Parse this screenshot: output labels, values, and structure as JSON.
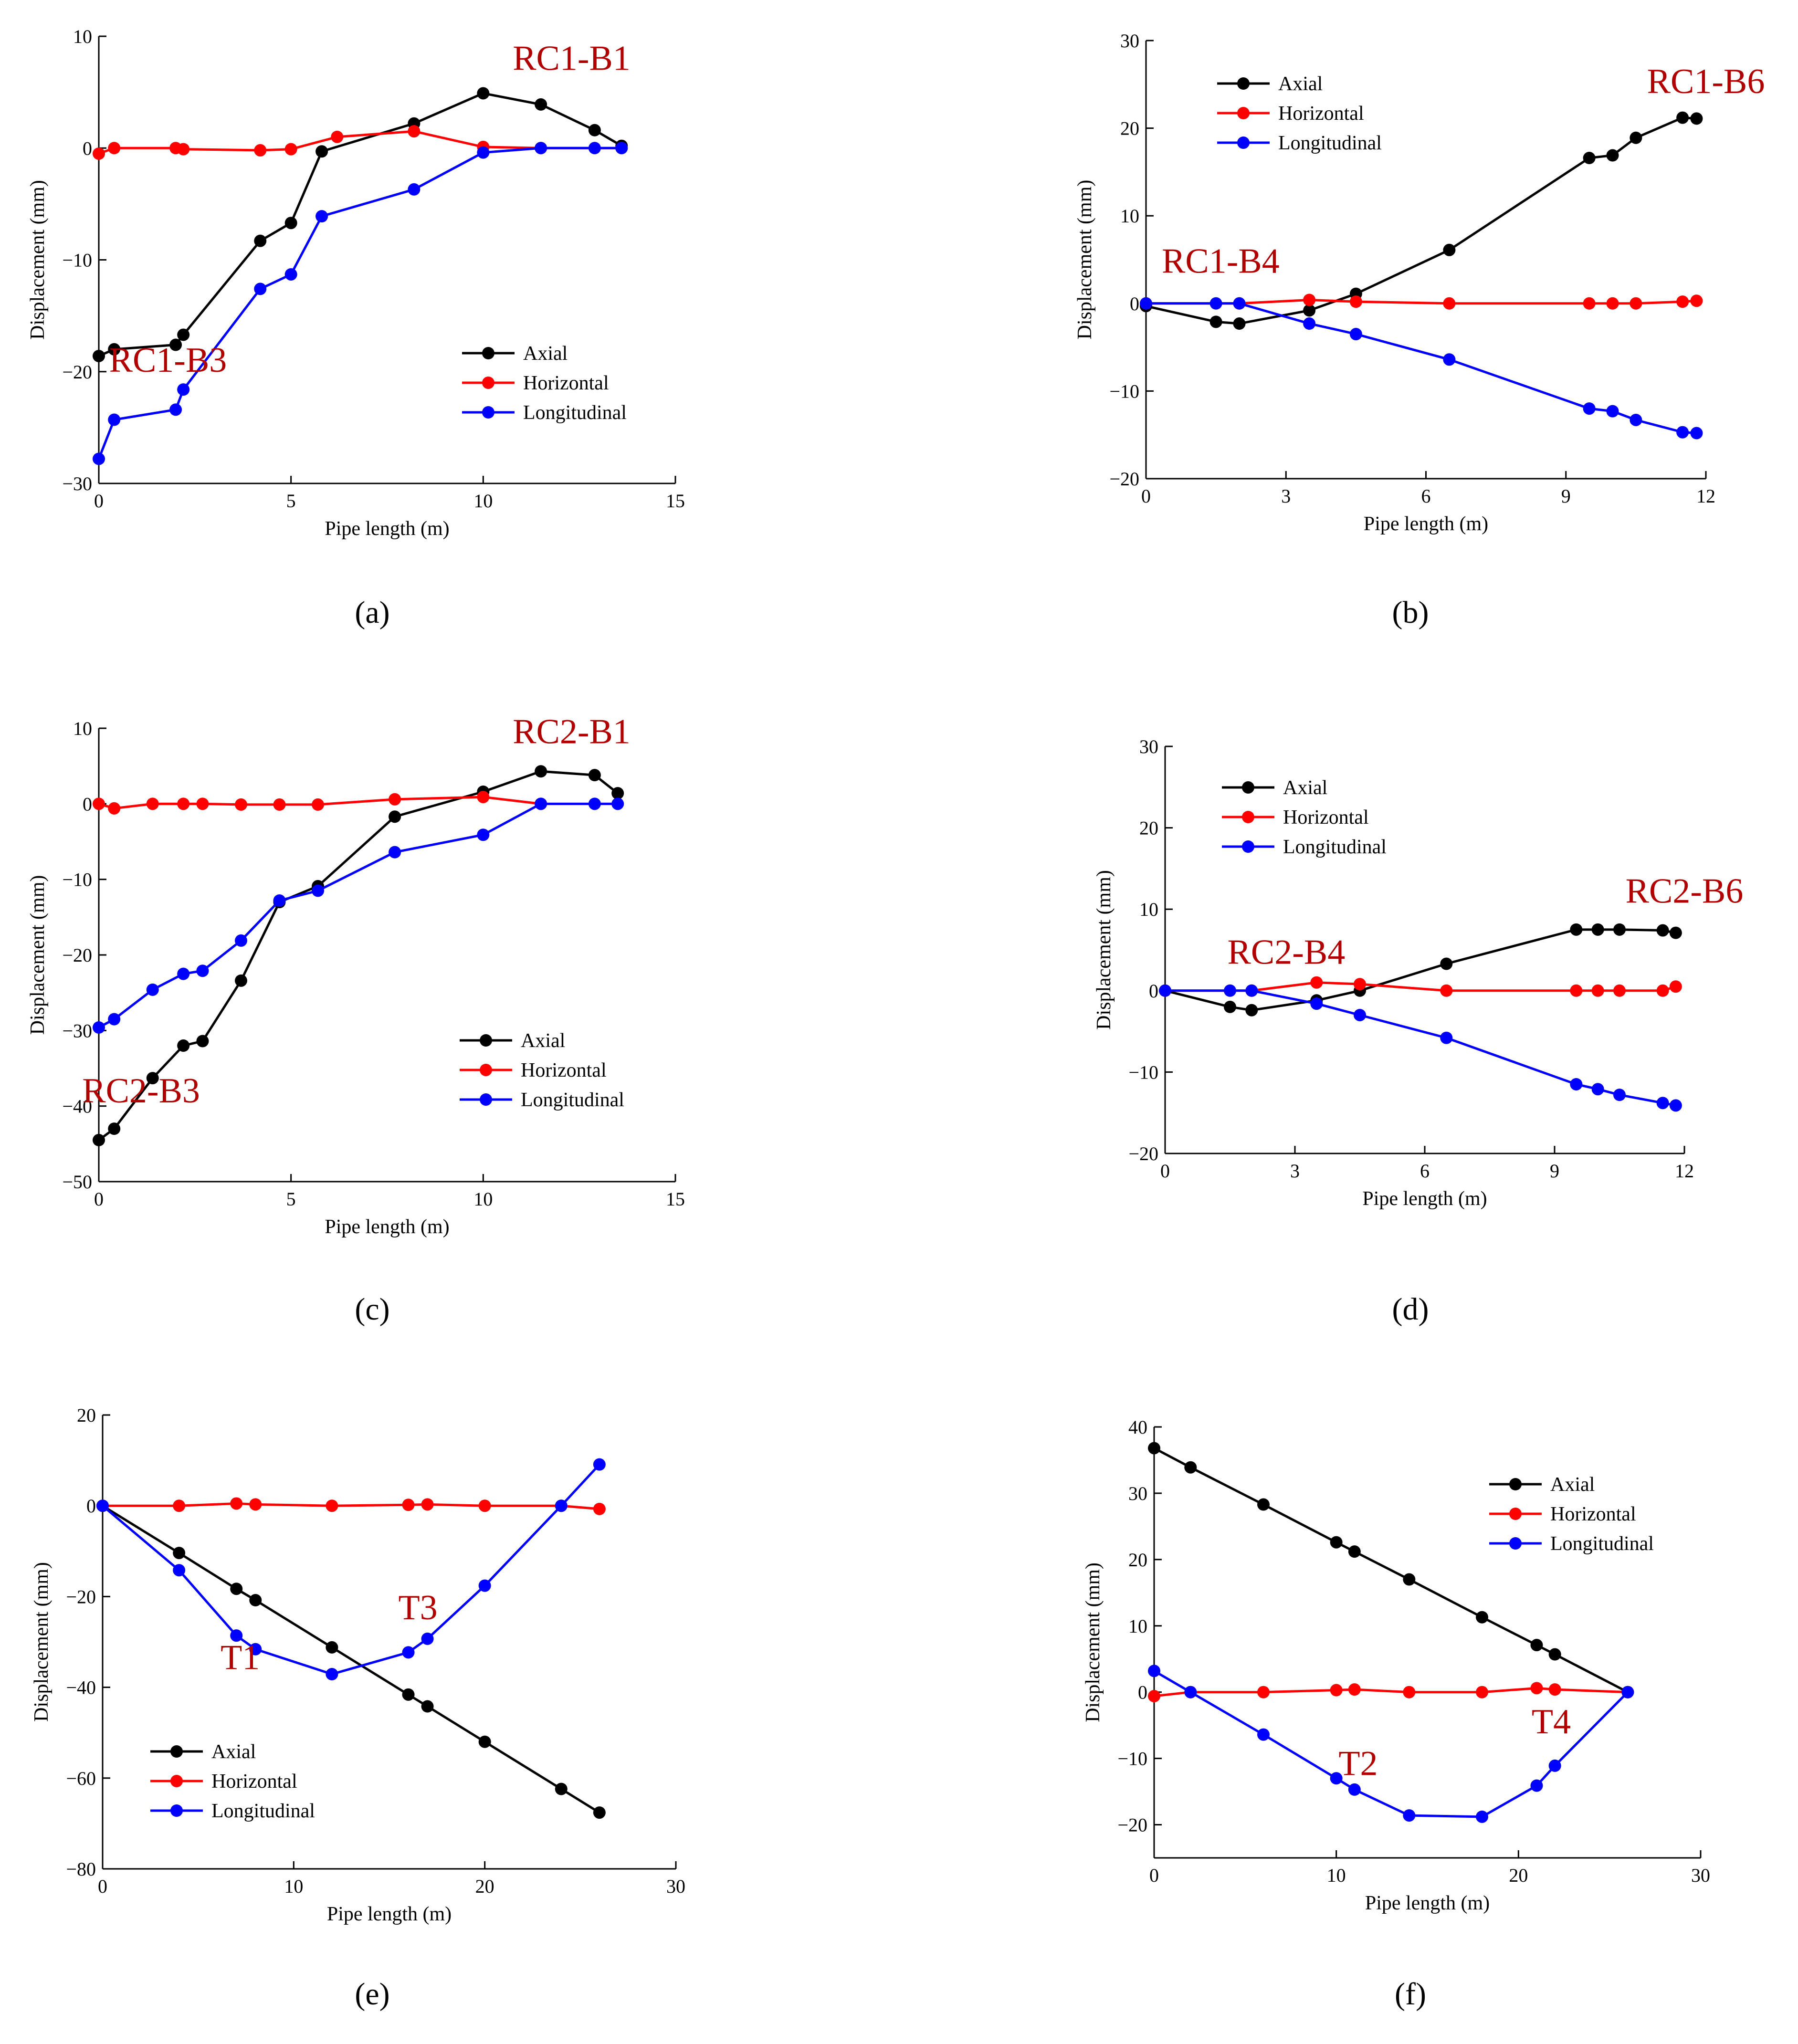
{
  "colors": {
    "axial": "#000000",
    "horizontal": "#ff0000",
    "longitudinal": "#0000ff",
    "annotation": "#b00000"
  },
  "captions": [
    "(a)",
    "(b)",
    "(c)",
    "(d)",
    "(e)",
    "(f)"
  ],
  "chart_data": [
    {
      "type": "line",
      "panel": "a",
      "xlabel": "Pipe length (m)",
      "ylabel": "Displacement (mm)",
      "xlim": [
        0,
        15
      ],
      "ylim": [
        -30,
        10
      ],
      "xticks": [
        0,
        5,
        10,
        15
      ],
      "yticks": [
        -30,
        -20,
        -10,
        0,
        10
      ],
      "xtick_labels": [
        "0",
        "5",
        "10",
        "15"
      ],
      "ytick_labels": [
        "−30",
        "−20",
        "−10",
        "0",
        "10"
      ],
      "legend": "bottom-right",
      "annotations": [
        {
          "text": "RC1-B1",
          "x": 12.3,
          "y": 7.0
        },
        {
          "text": "RC1-B3",
          "x": 1.8,
          "y": -20.0
        }
      ],
      "series": [
        {
          "name": "Axial",
          "key": "axial",
          "x": [
            0,
            0.4,
            2,
            2.2,
            4.2,
            5,
            5.8,
            8.2,
            10,
            11.5,
            12.9,
            13.6
          ],
          "y": [
            -18.6,
            -18,
            -17.6,
            -16.7,
            -8.3,
            -6.7,
            -0.3,
            2.2,
            4.9,
            3.9,
            1.6,
            0.2
          ]
        },
        {
          "name": "Horizontal",
          "key": "horizontal",
          "x": [
            0,
            0.4,
            2,
            2.2,
            4.2,
            5,
            6.2,
            8.2,
            10,
            11.5,
            13.6
          ],
          "y": [
            -0.5,
            0,
            0,
            -0.1,
            -0.2,
            -0.1,
            1,
            1.5,
            0.1,
            0,
            0
          ]
        },
        {
          "name": "Longitudinal",
          "key": "longitudinal",
          "x": [
            0,
            0.4,
            2,
            2.2,
            4.2,
            5,
            5.8,
            8.2,
            10,
            11.5,
            12.9,
            13.6
          ],
          "y": [
            -27.8,
            -24.3,
            -23.4,
            -21.6,
            -12.6,
            -11.3,
            -6.1,
            -3.7,
            -0.4,
            0,
            0,
            0
          ]
        }
      ]
    },
    {
      "type": "line",
      "panel": "b",
      "xlabel": "Pipe length (m)",
      "ylabel": "Displacement (mm)",
      "xlim": [
        0,
        12
      ],
      "ylim": [
        -20,
        30
      ],
      "xticks": [
        0,
        3,
        6,
        9,
        12
      ],
      "yticks": [
        -20,
        -10,
        0,
        10,
        20,
        30
      ],
      "xtick_labels": [
        "0",
        "3",
        "6",
        "9",
        "12"
      ],
      "ytick_labels": [
        "−20",
        "−10",
        "0",
        "10",
        "20",
        "30"
      ],
      "legend": "top-left",
      "annotations": [
        {
          "text": "RC1-B6",
          "x": 12.0,
          "y": 24.0
        },
        {
          "text": "RC1-B4",
          "x": 1.6,
          "y": 3.5
        }
      ],
      "series": [
        {
          "name": "Axial",
          "key": "axial",
          "x": [
            0,
            1.5,
            2,
            3.5,
            4.5,
            6.5,
            9.5,
            10,
            10.5,
            11.5,
            11.8
          ],
          "y": [
            -0.3,
            -2.1,
            -2.3,
            -0.8,
            1.1,
            6.1,
            16.6,
            16.9,
            18.9,
            21.2,
            21.1
          ]
        },
        {
          "name": "Horizontal",
          "key": "horizontal",
          "x": [
            0,
            2,
            3.5,
            4.5,
            6.5,
            9.5,
            10,
            10.5,
            11.5,
            11.8
          ],
          "y": [
            0,
            0,
            0.4,
            0.2,
            0,
            0,
            0,
            0,
            0.2,
            0.3
          ]
        },
        {
          "name": "Longitudinal",
          "key": "longitudinal",
          "x": [
            0,
            1.5,
            2,
            3.5,
            4.5,
            6.5,
            9.5,
            10,
            10.5,
            11.5,
            11.8
          ],
          "y": [
            0,
            0,
            0,
            -2.3,
            -3.5,
            -6.4,
            -12,
            -12.3,
            -13.3,
            -14.7,
            -14.8
          ]
        }
      ]
    },
    {
      "type": "line",
      "panel": "c",
      "xlabel": "Pipe length (m)",
      "ylabel": "Displacement (mm)",
      "xlim": [
        0,
        15
      ],
      "ylim": [
        -50,
        10
      ],
      "xticks": [
        0,
        5,
        10,
        15
      ],
      "yticks": [
        -50,
        -40,
        -30,
        -20,
        -10,
        0,
        10
      ],
      "xtick_labels": [
        "0",
        "5",
        "10",
        "15"
      ],
      "ytick_labels": [
        "−50",
        "−40",
        "−30",
        "−20",
        "−10",
        "0",
        "10"
      ],
      "legend": "bottom-right",
      "annotations": [
        {
          "text": "RC2-B1",
          "x": 12.3,
          "y": 8.0
        },
        {
          "text": "RC2-B3",
          "x": 1.1,
          "y": -39.5
        }
      ],
      "series": [
        {
          "name": "Axial",
          "key": "axial",
          "x": [
            0,
            0.4,
            1.4,
            2.2,
            2.7,
            3.7,
            4.7,
            5.7,
            7.7,
            10,
            11.5,
            12.9,
            13.5
          ],
          "y": [
            -44.5,
            -43,
            -36.3,
            -32,
            -31.4,
            -23.4,
            -13,
            -10.9,
            -1.7,
            1.6,
            4.3,
            3.8,
            1.4
          ]
        },
        {
          "name": "Horizontal",
          "key": "horizontal",
          "x": [
            0,
            0.4,
            1.4,
            2.2,
            2.7,
            3.7,
            4.7,
            5.7,
            7.7,
            10,
            11.5
          ],
          "y": [
            0,
            -0.6,
            0,
            0,
            0,
            -0.1,
            -0.1,
            -0.1,
            0.6,
            0.9,
            0
          ]
        },
        {
          "name": "Longitudinal",
          "key": "longitudinal",
          "x": [
            0,
            0.4,
            1.4,
            2.2,
            2.7,
            3.7,
            4.7,
            5.7,
            7.7,
            10,
            11.5,
            12.9,
            13.5
          ],
          "y": [
            -29.6,
            -28.5,
            -24.6,
            -22.5,
            -22.1,
            -18.1,
            -12.8,
            -11.5,
            -6.4,
            -4.1,
            0,
            0,
            0
          ]
        }
      ]
    },
    {
      "type": "line",
      "panel": "d",
      "xlabel": "Pipe length (m)",
      "ylabel": "Displacement (mm)",
      "xlim": [
        0,
        12
      ],
      "ylim": [
        -20,
        30
      ],
      "xticks": [
        0,
        3,
        6,
        9,
        12
      ],
      "yticks": [
        -20,
        -10,
        0,
        10,
        20,
        30
      ],
      "xtick_labels": [
        "0",
        "3",
        "6",
        "9",
        "12"
      ],
      "ytick_labels": [
        "−20",
        "−10",
        "0",
        "10",
        "20",
        "30"
      ],
      "legend": "top-left",
      "annotations": [
        {
          "text": "RC2-B6",
          "x": 12.0,
          "y": 10.8
        },
        {
          "text": "RC2-B4",
          "x": 2.8,
          "y": 3.3
        }
      ],
      "series": [
        {
          "name": "Axial",
          "key": "axial",
          "x": [
            0,
            1.5,
            2,
            3.5,
            4.5,
            6.5,
            9.5,
            10,
            10.5,
            11.5,
            11.8
          ],
          "y": [
            0,
            -2,
            -2.4,
            -1.2,
            0,
            3.3,
            7.5,
            7.5,
            7.5,
            7.4,
            7.1
          ]
        },
        {
          "name": "Horizontal",
          "key": "horizontal",
          "x": [
            0,
            2,
            3.5,
            4.5,
            6.5,
            9.5,
            10,
            10.5,
            11.5,
            11.8
          ],
          "y": [
            0,
            0,
            1,
            0.8,
            0,
            0,
            0,
            0,
            0,
            0.5
          ]
        },
        {
          "name": "Longitudinal",
          "key": "longitudinal",
          "x": [
            0,
            1.5,
            2,
            3.5,
            4.5,
            6.5,
            9.5,
            10,
            10.5,
            11.5,
            11.8
          ],
          "y": [
            0,
            0,
            0,
            -1.6,
            -3,
            -5.8,
            -11.5,
            -12.1,
            -12.8,
            -13.8,
            -14.1
          ]
        }
      ]
    },
    {
      "type": "line",
      "panel": "e",
      "xlabel": "Pipe length (m)",
      "ylabel": "Displacement (mm)",
      "xlim": [
        0,
        30
      ],
      "ylim": [
        -80,
        20
      ],
      "xticks": [
        0,
        10,
        20,
        30
      ],
      "yticks": [
        -80,
        -60,
        -40,
        -20,
        0,
        20
      ],
      "xtick_labels": [
        "0",
        "10",
        "20",
        "30"
      ],
      "ytick_labels": [
        "−80",
        "−60",
        "−40",
        "−20",
        "0",
        "20"
      ],
      "legend": "bottom-left",
      "annotations": [
        {
          "text": "T1",
          "x": 7.2,
          "y": -36.0
        },
        {
          "text": "T3",
          "x": 16.5,
          "y": -25.0
        }
      ],
      "series": [
        {
          "name": "Axial",
          "key": "axial",
          "x": [
            0,
            4,
            7,
            8,
            12,
            16,
            17,
            20,
            24,
            26
          ],
          "y": [
            0,
            -10.4,
            -18.3,
            -20.8,
            -31.2,
            -41.6,
            -44.2,
            -52,
            -62.4,
            -67.6
          ]
        },
        {
          "name": "Horizontal",
          "key": "horizontal",
          "x": [
            0,
            4,
            7,
            8,
            12,
            16,
            17,
            20,
            24,
            26
          ],
          "y": [
            0,
            0,
            0.5,
            0.3,
            0,
            0.2,
            0.3,
            0,
            0,
            -0.7
          ]
        },
        {
          "name": "Longitudinal",
          "key": "longitudinal",
          "x": [
            0,
            4,
            7,
            8,
            12,
            16,
            17,
            20,
            24,
            26
          ],
          "y": [
            0,
            -14.2,
            -28.6,
            -31.6,
            -37.1,
            -32.3,
            -29.3,
            -17.6,
            0,
            9.1
          ]
        }
      ]
    },
    {
      "type": "line",
      "panel": "f",
      "xlabel": "Pipe length (m)",
      "ylabel": "Displacement (mm)",
      "xlim": [
        0,
        30
      ],
      "ylim": [
        -25,
        40
      ],
      "xticks": [
        0,
        10,
        20,
        30
      ],
      "yticks": [
        -20,
        -10,
        0,
        10,
        20,
        30,
        40
      ],
      "xtick_labels": [
        "0",
        "10",
        "20",
        "30"
      ],
      "ytick_labels": [
        "−20",
        "−10",
        "0",
        "10",
        "20",
        "30",
        "40"
      ],
      "legend": "top-right",
      "annotations": [
        {
          "text": "T2",
          "x": 11.2,
          "y": -12.5
        },
        {
          "text": "T4",
          "x": 21.8,
          "y": -6.2
        }
      ],
      "series": [
        {
          "name": "Axial",
          "key": "axial",
          "x": [
            0,
            2,
            6,
            10,
            11,
            14,
            18,
            21,
            22,
            26
          ],
          "y": [
            36.8,
            33.9,
            28.3,
            22.6,
            21.2,
            17,
            11.3,
            7.1,
            5.7,
            0
          ]
        },
        {
          "name": "Horizontal",
          "key": "horizontal",
          "x": [
            0,
            2,
            6,
            10,
            11,
            14,
            18,
            21,
            22,
            26
          ],
          "y": [
            -0.6,
            0,
            0,
            0.3,
            0.4,
            0,
            0,
            0.6,
            0.4,
            0
          ]
        },
        {
          "name": "Longitudinal",
          "key": "longitudinal",
          "x": [
            0,
            2,
            6,
            10,
            11,
            14,
            18,
            21,
            22,
            26
          ],
          "y": [
            3.2,
            0,
            -6.4,
            -13,
            -14.7,
            -18.6,
            -18.8,
            -14.1,
            -11.1,
            0
          ]
        }
      ]
    }
  ]
}
